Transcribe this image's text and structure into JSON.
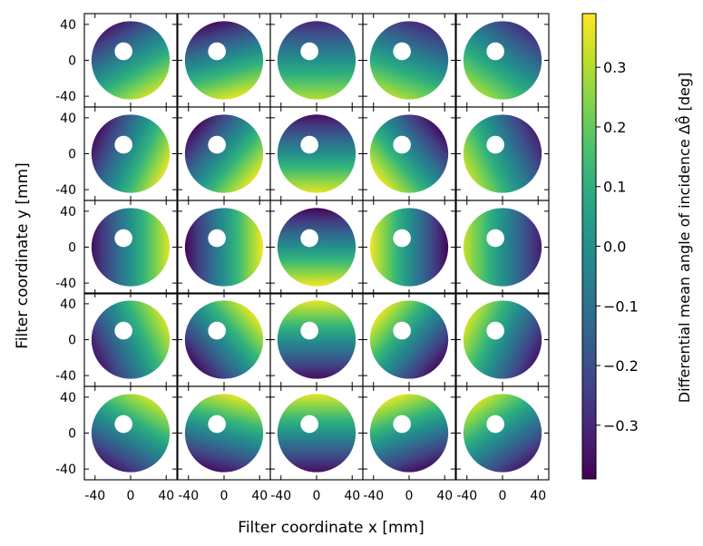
{
  "chart_data": {
    "type": "heatmap",
    "grid": {
      "rows": 5,
      "cols": 5
    },
    "xlabel": "Filter coordinate  x [mm]",
    "ylabel": "Filter coordinate  y [mm]",
    "xlim": [
      -52,
      52
    ],
    "ylim": [
      -52,
      52
    ],
    "x_ticks": [
      -40,
      0,
      40
    ],
    "x_tick_labels": [
      "-40",
      "0",
      "40"
    ],
    "y_ticks": [
      40,
      0,
      -40
    ],
    "y_tick_labels": [
      "40",
      "0",
      "-40"
    ],
    "disk": {
      "outer_radius": 44,
      "inner_radius": 10,
      "center": [
        -8,
        10
      ]
    },
    "colorbar": {
      "label": "Differential mean angle of incidence  Δθ̂ [deg]",
      "range": [
        -0.39,
        0.39
      ],
      "ticks": [
        0.3,
        0.2,
        0.1,
        0.0,
        -0.1,
        -0.2,
        -0.3
      ],
      "tick_labels": [
        "0.3",
        "0.2",
        "0.1",
        "0.0",
        "−0.1",
        "−0.2",
        "−0.3"
      ],
      "colormap": "viridis"
    },
    "panels": [
      {
        "row": 0,
        "col": 0,
        "gradient_dir_deg": -60,
        "amplitude": 0.33
      },
      {
        "row": 0,
        "col": 1,
        "gradient_dir_deg": -75,
        "amplitude": 0.36
      },
      {
        "row": 0,
        "col": 2,
        "gradient_dir_deg": -90,
        "amplitude": 0.3
      },
      {
        "row": 0,
        "col": 3,
        "gradient_dir_deg": -110,
        "amplitude": 0.3
      },
      {
        "row": 0,
        "col": 4,
        "gradient_dir_deg": -125,
        "amplitude": 0.28
      },
      {
        "row": 1,
        "col": 0,
        "gradient_dir_deg": -25,
        "amplitude": 0.36
      },
      {
        "row": 1,
        "col": 1,
        "gradient_dir_deg": -40,
        "amplitude": 0.36
      },
      {
        "row": 1,
        "col": 2,
        "gradient_dir_deg": -90,
        "amplitude": 0.36
      },
      {
        "row": 1,
        "col": 3,
        "gradient_dir_deg": -140,
        "amplitude": 0.36
      },
      {
        "row": 1,
        "col": 4,
        "gradient_dir_deg": -155,
        "amplitude": 0.32
      },
      {
        "row": 2,
        "col": 0,
        "gradient_dir_deg": 0,
        "amplitude": 0.36
      },
      {
        "row": 2,
        "col": 1,
        "gradient_dir_deg": 0,
        "amplitude": 0.38
      },
      {
        "row": 2,
        "col": 2,
        "gradient_dir_deg": -90,
        "amplitude": 0.38
      },
      {
        "row": 2,
        "col": 3,
        "gradient_dir_deg": 180,
        "amplitude": 0.38
      },
      {
        "row": 2,
        "col": 4,
        "gradient_dir_deg": 180,
        "amplitude": 0.33
      },
      {
        "row": 3,
        "col": 0,
        "gradient_dir_deg": 25,
        "amplitude": 0.34
      },
      {
        "row": 3,
        "col": 1,
        "gradient_dir_deg": 40,
        "amplitude": 0.36
      },
      {
        "row": 3,
        "col": 2,
        "gradient_dir_deg": 90,
        "amplitude": 0.36
      },
      {
        "row": 3,
        "col": 3,
        "gradient_dir_deg": 140,
        "amplitude": 0.36
      },
      {
        "row": 3,
        "col": 4,
        "gradient_dir_deg": 155,
        "amplitude": 0.34
      },
      {
        "row": 4,
        "col": 0,
        "gradient_dir_deg": 60,
        "amplitude": 0.33
      },
      {
        "row": 4,
        "col": 1,
        "gradient_dir_deg": 75,
        "amplitude": 0.36
      },
      {
        "row": 4,
        "col": 2,
        "gradient_dir_deg": 90,
        "amplitude": 0.36
      },
      {
        "row": 4,
        "col": 3,
        "gradient_dir_deg": 110,
        "amplitude": 0.36
      },
      {
        "row": 4,
        "col": 4,
        "gradient_dir_deg": 125,
        "amplitude": 0.33
      }
    ]
  }
}
